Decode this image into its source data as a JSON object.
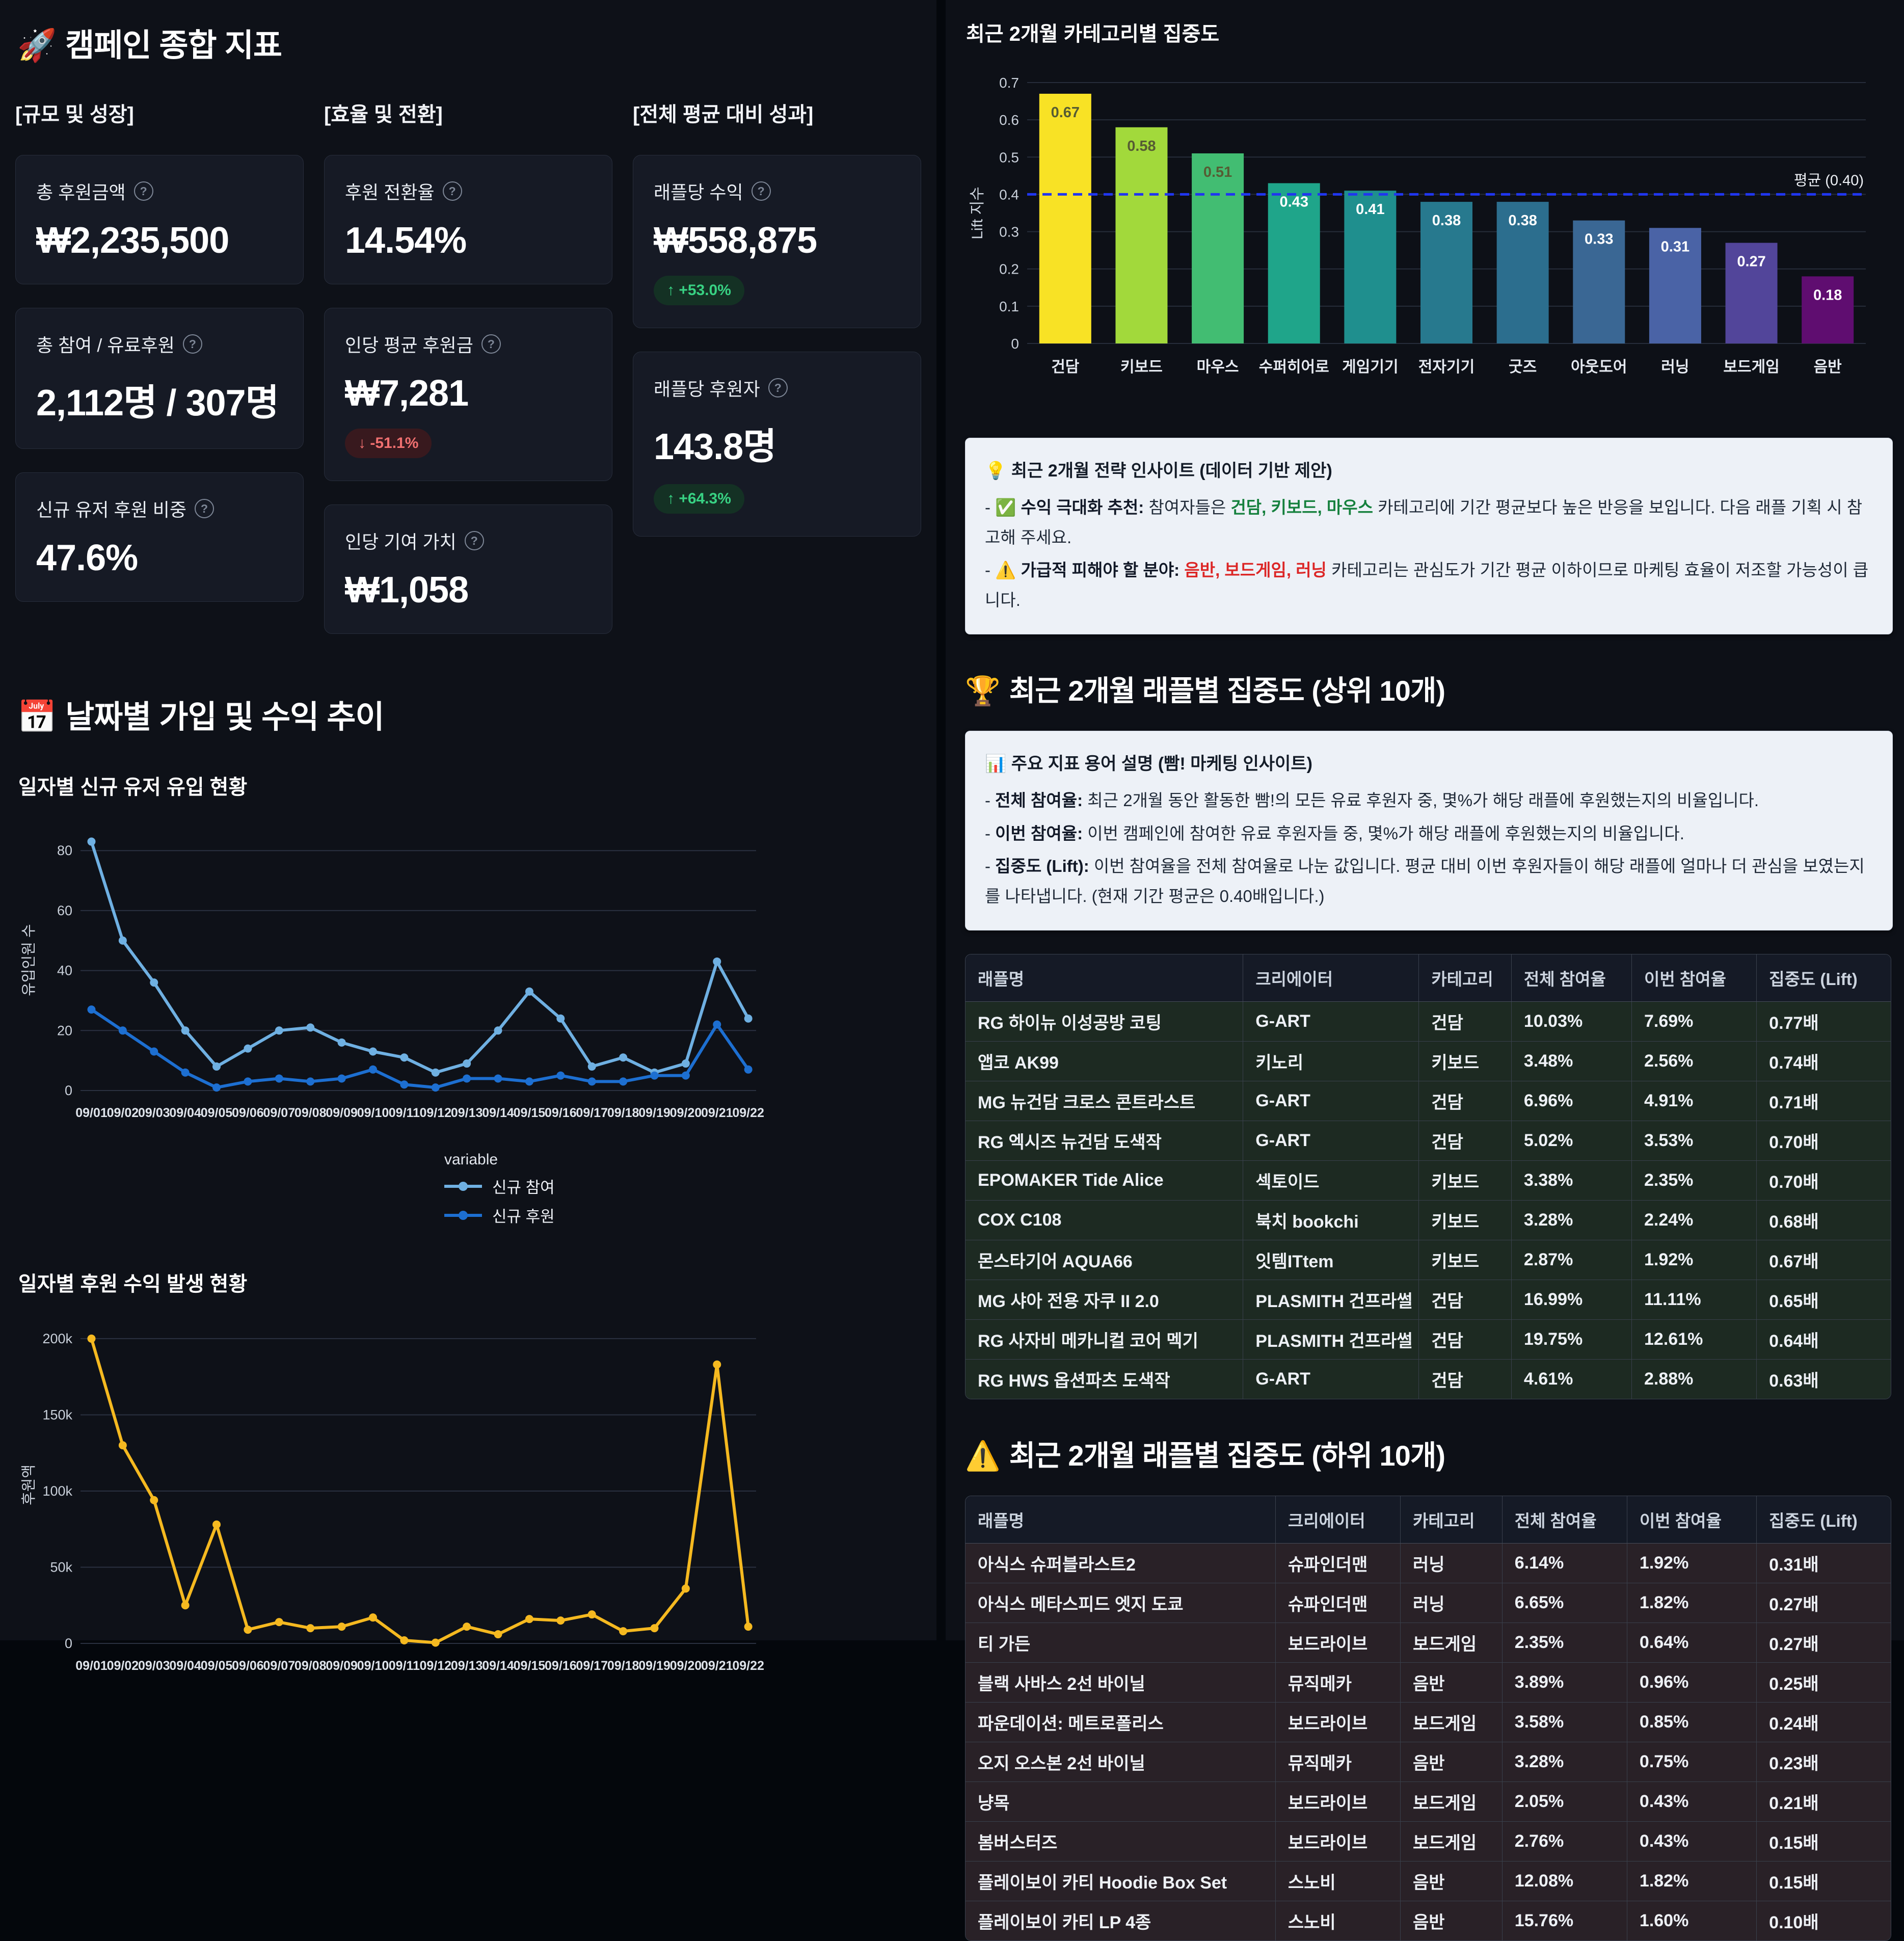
{
  "kpi": {
    "icon": "🚀",
    "title": "캠페인 종합 지표",
    "groups": [
      {
        "label": "[규모 및 성장]",
        "cards": [
          {
            "label": "총 후원금액",
            "value": "₩2,235,500"
          },
          {
            "label": "총 참여 / 유료후원",
            "value": "2,112명 / 307명"
          },
          {
            "label": "신규 유저 후원 비중",
            "value": "47.6%"
          }
        ]
      },
      {
        "label": "[효율 및 전환]",
        "cards": [
          {
            "label": "후원 전환율",
            "value": "14.54%"
          },
          {
            "label": "인당 평균 후원금",
            "value": "₩7,281",
            "delta": "-51.1%",
            "delta_dir": "down",
            "delta_arrow": "↓"
          },
          {
            "label": "인당 기여 가치",
            "value": "₩1,058"
          }
        ]
      },
      {
        "label": "[전체 평균 대비 성과]",
        "cards": [
          {
            "label": "래플당 수익",
            "value": "₩558,875",
            "delta": "+53.0%",
            "delta_dir": "up",
            "delta_arrow": "↑"
          },
          {
            "label": "래플당 후원자",
            "value": "143.8명",
            "delta": "+64.3%",
            "delta_dir": "up",
            "delta_arrow": "↑"
          }
        ]
      }
    ]
  },
  "trend": {
    "icon": "📅",
    "title": "날짜별 가입 및 수익 추이",
    "chart1_title": "일자별 신규 유저 유입 현황",
    "chart2_title": "일자별 후원 수익 발생 현황",
    "legend_title": "variable"
  },
  "right": {
    "bar_title": "최근 2개월 카테고리별 집중도",
    "insight": {
      "icon": "💡",
      "title": "최근 2개월 전략 인사이트 (데이터 기반 제안)",
      "lines": [
        {
          "icon": "✅",
          "bold": "수익 극대화 추천:",
          "mid": " 참여자들은 ",
          "highlight": "건담, 키보드, 마우스",
          "hl_color": "#15803d",
          "post": " 카테고리에 기간 평균보다 높은 반응을 보입니다. 다음 래플 기획 시 참고해 주세요."
        },
        {
          "icon": "⚠️",
          "bold": "가급적 피해야 할 분야:",
          "mid": " ",
          "highlight": "음반, 보드게임, 러닝",
          "hl_color": "#dc2626",
          "post": " 카테고리는 관심도가 기간 평균 이하이므로 마케팅 효율이 저조할 가능성이 큽니다."
        }
      ]
    },
    "top_heading": {
      "icon": "🏆",
      "text": "최근 2개월 래플별 집중도 (상위 10개)"
    },
    "terms": {
      "icon": "📊",
      "title": "주요 지표 용어 설명 (빰! 마케팅 인사이트)",
      "items": [
        {
          "term": "전체 참여율:",
          "desc": " 최근 2개월 동안 활동한 빰!의 모든 유료 후원자 중, 몇%가 해당 래플에 후원했는지의 비율입니다."
        },
        {
          "term": "이번 참여율:",
          "desc": " 이번 캠페인에 참여한 유료 후원자들 중, 몇%가 해당 래플에 후원했는지의 비율입니다."
        },
        {
          "term": "집중도 (Lift):",
          "desc": " 이번 참여율을 전체 참여율로 나눈 값입니다. 평균 대비 이번 후원자들이 해당 래플에 얼마나 더 관심을 보였는지를 나타냅니다. (현재 기간 평균은 0.40배입니다.)"
        }
      ]
    },
    "table_columns": [
      "래플명",
      "크리에이터",
      "카테고리",
      "전체 참여율",
      "이번 참여율",
      "집중도 (Lift)"
    ],
    "top_table": {
      "col_widths": [
        "30%",
        "19%",
        "10%",
        "13%",
        "13.5%",
        "14.5%"
      ],
      "rows": [
        [
          "RG 하이뉴 이성공방 코팅",
          "G-ART",
          "건담",
          "10.03%",
          "7.69%",
          "0.77배"
        ],
        [
          "앱코 AK99",
          "키노리",
          "키보드",
          "3.48%",
          "2.56%",
          "0.74배"
        ],
        [
          "MG 뉴건담 크로스 콘트라스트",
          "G-ART",
          "건담",
          "6.96%",
          "4.91%",
          "0.71배"
        ],
        [
          "RG 엑시즈 뉴건담 도색작",
          "G-ART",
          "건담",
          "5.02%",
          "3.53%",
          "0.70배"
        ],
        [
          "EPOMAKER Tide Alice",
          "섹토이드",
          "키보드",
          "3.38%",
          "2.35%",
          "0.70배"
        ],
        [
          "COX C108",
          "북치 bookchi",
          "키보드",
          "3.28%",
          "2.24%",
          "0.68배"
        ],
        [
          "몬스타기어 AQUA66",
          "잇템ITtem",
          "키보드",
          "2.87%",
          "1.92%",
          "0.67배"
        ],
        [
          "MG 샤아 전용 자쿠 II 2.0",
          "PLASMITH 건프라썰",
          "건담",
          "16.99%",
          "11.11%",
          "0.65배"
        ],
        [
          "RG 사자비 메카니컬 코어 멕기",
          "PLASMITH 건프라썰",
          "건담",
          "19.75%",
          "12.61%",
          "0.64배"
        ],
        [
          "RG HWS 옵션파츠 도색작",
          "G-ART",
          "건담",
          "4.61%",
          "2.88%",
          "0.63배"
        ]
      ]
    },
    "bottom_heading": {
      "icon": "⚠️",
      "text": "최근 2개월 래플별 집중도 (하위 10개)"
    },
    "bottom_table": {
      "col_widths": [
        "33.5%",
        "13.5%",
        "11%",
        "13.5%",
        "14%",
        "14.5%"
      ],
      "rows": [
        [
          "아식스 슈퍼블라스트2",
          "슈파인더맨",
          "러닝",
          "6.14%",
          "1.92%",
          "0.31배"
        ],
        [
          "아식스 메타스피드 엣지 도쿄",
          "슈파인더맨",
          "러닝",
          "6.65%",
          "1.82%",
          "0.27배"
        ],
        [
          "티 가든",
          "보드라이브",
          "보드게임",
          "2.35%",
          "0.64%",
          "0.27배"
        ],
        [
          "블랙 사바스 2선 바이닐",
          "뮤직메카",
          "음반",
          "3.89%",
          "0.96%",
          "0.25배"
        ],
        [
          "파운데이션: 메트로폴리스",
          "보드라이브",
          "보드게임",
          "3.58%",
          "0.85%",
          "0.24배"
        ],
        [
          "오지 오스본 2선 바이닐",
          "뮤직메카",
          "음반",
          "3.28%",
          "0.75%",
          "0.23배"
        ],
        [
          "냥목",
          "보드라이브",
          "보드게임",
          "2.05%",
          "0.43%",
          "0.21배"
        ],
        [
          "봄버스터즈",
          "보드라이브",
          "보드게임",
          "2.76%",
          "0.43%",
          "0.15배"
        ],
        [
          "플레이보이 카티 Hoodie Box Set",
          "스노비",
          "음반",
          "12.08%",
          "1.82%",
          "0.15배"
        ],
        [
          "플레이보이 카티 LP 4종",
          "스노비",
          "음반",
          "15.76%",
          "1.60%",
          "0.10배"
        ]
      ]
    }
  },
  "chart_data": [
    {
      "id": "category_lift",
      "type": "bar",
      "title": "최근 2개월 카테고리별 집중도",
      "ylabel": "Lift 지수",
      "ylim": [
        0,
        0.7
      ],
      "yticks": [
        0,
        0.1,
        0.2,
        0.3,
        0.4,
        0.5,
        0.6,
        0.7
      ],
      "categories": [
        "건담",
        "키보드",
        "마우스",
        "수퍼히어로",
        "게임기기",
        "전자기기",
        "굿즈",
        "아웃도어",
        "러닝",
        "보드게임",
        "음반"
      ],
      "values": [
        0.67,
        0.58,
        0.51,
        0.43,
        0.41,
        0.38,
        0.38,
        0.33,
        0.31,
        0.27,
        0.18
      ],
      "colors": [
        "#f8e225",
        "#a2d93b",
        "#42bd72",
        "#1fa58a",
        "#1f8f8e",
        "#27798e",
        "#2c6e8e",
        "#3a6794",
        "#4a63a6",
        "#52459a",
        "#5f0d70"
      ],
      "label_dark_count": 3,
      "avg_line": {
        "value": 0.4,
        "label": "평균 (0.40)",
        "color": "#2036f0",
        "style": "dashed"
      },
      "grid": true,
      "legend": "none"
    },
    {
      "id": "daily_users",
      "type": "line",
      "title": "일자별 신규 유저 유입 현황",
      "ylabel": "유입인원 수",
      "ylim": [
        0,
        87
      ],
      "yticks": [
        0,
        20,
        40,
        60,
        80
      ],
      "ytick_labels": [
        "0",
        "20",
        "40",
        "60",
        "80"
      ],
      "x": [
        "09/01",
        "09/02",
        "09/03",
        "09/04",
        "09/05",
        "09/06",
        "09/07",
        "09/08",
        "09/09",
        "09/10",
        "09/11",
        "09/12",
        "09/13",
        "09/14",
        "09/15",
        "09/16",
        "09/17",
        "09/18",
        "09/19",
        "09/20",
        "09/21",
        "09/22"
      ],
      "series": [
        {
          "name": "신규 참여",
          "color": "#6fb0e2",
          "values": [
            83,
            50,
            36,
            20,
            8,
            14,
            20,
            21,
            16,
            13,
            11,
            6,
            9,
            20,
            33,
            24,
            8,
            11,
            6,
            9,
            43,
            24
          ]
        },
        {
          "name": "신규 후원",
          "color": "#1d6fd1",
          "values": [
            27,
            20,
            13,
            6,
            1,
            3,
            4,
            3,
            4,
            7,
            2,
            1,
            4,
            4,
            3,
            5,
            3,
            3,
            5,
            5,
            22,
            7
          ]
        }
      ],
      "legend_title": "variable",
      "legend_position": "bottom",
      "grid": true
    },
    {
      "id": "daily_revenue",
      "type": "line",
      "title": "일자별 후원 수익 발생 현황",
      "ylabel": "후원액",
      "ylim": [
        0,
        208000
      ],
      "yticks": [
        0,
        50000,
        100000,
        150000,
        200000
      ],
      "ytick_labels": [
        "0",
        "50k",
        "100k",
        "150k",
        "200k"
      ],
      "x": [
        "09/01",
        "09/02",
        "09/03",
        "09/04",
        "09/05",
        "09/06",
        "09/07",
        "09/08",
        "09/09",
        "09/10",
        "09/11",
        "09/12",
        "09/13",
        "09/14",
        "09/15",
        "09/16",
        "09/17",
        "09/18",
        "09/19",
        "09/20",
        "09/21",
        "09/22"
      ],
      "series": [
        {
          "name": "후원액",
          "color": "#f5b920",
          "values": [
            200000,
            130000,
            94000,
            25000,
            78000,
            9000,
            14000,
            10000,
            11000,
            17000,
            2000,
            500,
            11000,
            6000,
            16000,
            15000,
            19000,
            8000,
            10000,
            36000,
            183000,
            11000
          ]
        }
      ],
      "legend": "none",
      "grid": true
    }
  ]
}
